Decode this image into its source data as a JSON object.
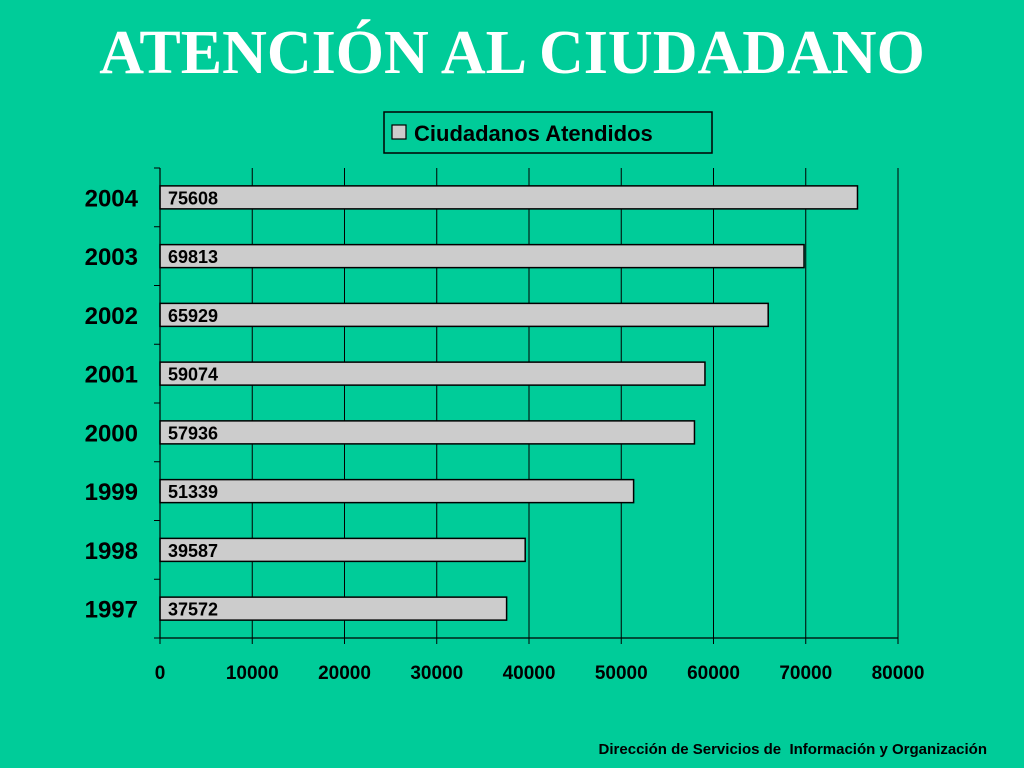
{
  "slide": {
    "title": "ATENCIÓN AL CIUDADANO",
    "footer": "Dirección de Servicios de  Información y Organización"
  },
  "colors": {
    "background": "#00cc99",
    "bar_fill": "#cccccc",
    "bar_stroke": "#000000",
    "title": "#ffffff"
  },
  "chart_data": {
    "type": "bar",
    "orientation": "horizontal",
    "categories": [
      "2004",
      "2003",
      "2002",
      "2001",
      "2000",
      "1999",
      "1998",
      "1997"
    ],
    "series": [
      {
        "name": "Ciudadanos Atendidos",
        "values": [
          75608,
          69813,
          65929,
          59074,
          57936,
          51339,
          39587,
          37572
        ]
      }
    ],
    "xlim": [
      0,
      80000
    ],
    "xticks": [
      "0",
      "10000",
      "20000",
      "30000",
      "40000",
      "50000",
      "60000",
      "70000",
      "80000"
    ],
    "grid": true,
    "legend": "top-center",
    "data_labels": "inside-base"
  }
}
